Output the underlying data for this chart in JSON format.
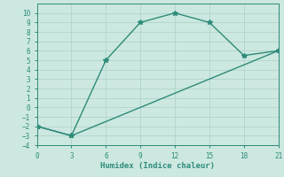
{
  "line1_x": [
    0,
    3,
    6,
    9,
    12,
    15,
    18,
    21
  ],
  "line1_y": [
    -2,
    -3,
    5,
    9,
    10,
    9,
    5.5,
    6
  ],
  "line2_x": [
    0,
    3,
    21
  ],
  "line2_y": [
    -2,
    -3,
    6
  ],
  "color": "#2e8b7a",
  "bg_color": "#cce8e0",
  "grid_color": "#b0d4cc",
  "xlabel": "Humidex (Indice chaleur)",
  "xlim": [
    0,
    21
  ],
  "ylim": [
    -4,
    11
  ],
  "xticks": [
    0,
    3,
    6,
    9,
    12,
    15,
    18,
    21
  ],
  "yticks": [
    -4,
    -3,
    -2,
    -1,
    0,
    1,
    2,
    3,
    4,
    5,
    6,
    7,
    8,
    9,
    10
  ],
  "marker": "*",
  "markersize": 4,
  "linewidth": 1.0
}
